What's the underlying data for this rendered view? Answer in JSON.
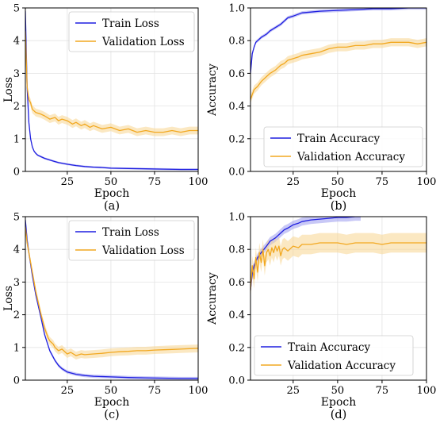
{
  "colors": {
    "train": "#1f1fe0",
    "validation": "#f2a820",
    "validation_band": "#f8d690",
    "train_band": "#9a9aee"
  },
  "chart_data": [
    {
      "type": "line",
      "panel": "(a)",
      "caption": "(a)",
      "xlabel": "Epoch",
      "ylabel": "Loss",
      "xlim": [
        1,
        100
      ],
      "ylim": [
        0,
        5
      ],
      "xticks": [
        25,
        50,
        75,
        100
      ],
      "yticks": [
        0,
        1,
        2,
        3,
        4,
        5
      ],
      "tick_labels_x": [
        "25",
        "50",
        "75",
        "100"
      ],
      "tick_labels_y": [
        "0",
        "1",
        "2",
        "3",
        "4",
        "5"
      ],
      "grid": true,
      "legend_position": "top-right",
      "series": [
        {
          "name": "Train Loss",
          "color_key": "train",
          "x": [
            1,
            2,
            3,
            4,
            5,
            6,
            7,
            8,
            10,
            12,
            15,
            18,
            20,
            25,
            30,
            35,
            40,
            45,
            50,
            60,
            70,
            80,
            90,
            100
          ],
          "y": [
            4.9,
            2.6,
            1.5,
            1.0,
            0.75,
            0.62,
            0.55,
            0.5,
            0.45,
            0.4,
            0.35,
            0.3,
            0.27,
            0.22,
            0.18,
            0.15,
            0.13,
            0.12,
            0.1,
            0.09,
            0.08,
            0.07,
            0.06,
            0.06
          ],
          "band": 0.03
        },
        {
          "name": "Validation Loss",
          "color_key": "validation",
          "x": [
            1,
            2,
            3,
            4,
            5,
            7,
            10,
            12,
            15,
            18,
            20,
            22,
            25,
            28,
            30,
            33,
            35,
            38,
            40,
            45,
            50,
            55,
            60,
            65,
            70,
            75,
            80,
            85,
            90,
            95,
            100
          ],
          "y": [
            4.3,
            2.6,
            2.2,
            2.1,
            1.9,
            1.8,
            1.75,
            1.7,
            1.6,
            1.65,
            1.55,
            1.6,
            1.55,
            1.45,
            1.5,
            1.4,
            1.45,
            1.35,
            1.4,
            1.3,
            1.35,
            1.25,
            1.3,
            1.2,
            1.25,
            1.2,
            1.2,
            1.25,
            1.2,
            1.25,
            1.25
          ],
          "band": 0.12
        }
      ],
      "legend": [
        "Train Loss",
        "Validation Loss"
      ]
    },
    {
      "type": "line",
      "panel": "(b)",
      "caption": "(b)",
      "xlabel": "Epoch",
      "ylabel": "Accuracy",
      "xlim": [
        1,
        100
      ],
      "ylim": [
        0,
        1
      ],
      "xticks": [
        25,
        50,
        75,
        100
      ],
      "yticks": [
        0,
        0.2,
        0.4,
        0.6,
        0.8,
        1.0
      ],
      "tick_labels_x": [
        "25",
        "50",
        "75",
        "100"
      ],
      "tick_labels_y": [
        "0.0",
        "0.2",
        "0.4",
        "0.6",
        "0.8",
        "1.0"
      ],
      "grid": true,
      "legend_position": "bottom-right",
      "series": [
        {
          "name": "Train Accuracy",
          "color_key": "train",
          "x": [
            1,
            2,
            3,
            4,
            5,
            7,
            10,
            12,
            15,
            18,
            20,
            22,
            25,
            30,
            35,
            40,
            50,
            60,
            70,
            80,
            90,
            100
          ],
          "y": [
            0.6,
            0.72,
            0.76,
            0.79,
            0.8,
            0.82,
            0.84,
            0.86,
            0.88,
            0.9,
            0.92,
            0.94,
            0.95,
            0.97,
            0.975,
            0.98,
            0.985,
            0.99,
            0.995,
            0.995,
            1.0,
            1.0
          ],
          "band": 0.01
        },
        {
          "name": "Validation Accuracy",
          "color_key": "validation",
          "x": [
            1,
            2,
            3,
            5,
            7,
            10,
            12,
            15,
            18,
            20,
            22,
            25,
            28,
            30,
            35,
            40,
            45,
            50,
            55,
            60,
            65,
            70,
            75,
            80,
            85,
            90,
            95,
            100
          ],
          "y": [
            0.44,
            0.47,
            0.5,
            0.52,
            0.55,
            0.58,
            0.6,
            0.62,
            0.65,
            0.66,
            0.68,
            0.69,
            0.7,
            0.71,
            0.72,
            0.73,
            0.75,
            0.76,
            0.76,
            0.77,
            0.77,
            0.78,
            0.78,
            0.79,
            0.79,
            0.79,
            0.78,
            0.79
          ],
          "band": 0.025
        }
      ],
      "legend": [
        "Train Accuracy",
        "Validation Accuracy"
      ]
    },
    {
      "type": "line",
      "panel": "(c)",
      "caption": "(c)",
      "xlabel": "Epoch",
      "ylabel": "Loss",
      "xlim": [
        1,
        100
      ],
      "ylim": [
        0,
        5
      ],
      "xticks": [
        25,
        50,
        75,
        100
      ],
      "yticks": [
        0,
        1,
        2,
        3,
        4,
        5
      ],
      "tick_labels_x": [
        "25",
        "50",
        "75",
        "100"
      ],
      "tick_labels_y": [
        "0",
        "1",
        "2",
        "3",
        "4",
        "5"
      ],
      "grid": true,
      "legend_position": "top-right",
      "series": [
        {
          "name": "Train Loss",
          "color_key": "train",
          "x": [
            1,
            2,
            3,
            5,
            7,
            10,
            12,
            15,
            18,
            20,
            22,
            25,
            30,
            35,
            40,
            50,
            60,
            70,
            80,
            90,
            100
          ],
          "y": [
            4.9,
            4.3,
            3.9,
            3.2,
            2.6,
            1.9,
            1.4,
            0.9,
            0.6,
            0.45,
            0.35,
            0.25,
            0.18,
            0.14,
            0.12,
            0.1,
            0.08,
            0.07,
            0.06,
            0.05,
            0.05
          ],
          "band": 0.05
        },
        {
          "name": "Validation Loss",
          "color_key": "validation",
          "x": [
            1,
            2,
            3,
            5,
            7,
            10,
            12,
            14,
            15,
            17,
            18,
            20,
            22,
            25,
            27,
            30,
            33,
            35,
            40,
            45,
            50,
            55,
            60,
            65,
            70,
            75,
            80,
            85,
            90,
            95,
            100
          ],
          "y": [
            4.7,
            4.2,
            3.9,
            3.3,
            2.7,
            2.0,
            1.6,
            1.3,
            1.2,
            1.1,
            1.0,
            0.9,
            0.95,
            0.8,
            0.85,
            0.75,
            0.8,
            0.78,
            0.8,
            0.82,
            0.85,
            0.87,
            0.88,
            0.9,
            0.9,
            0.92,
            0.93,
            0.94,
            0.95,
            0.96,
            0.97
          ],
          "band": 0.12
        }
      ],
      "legend": [
        "Train Loss",
        "Validation Loss"
      ]
    },
    {
      "type": "line",
      "panel": "(d)",
      "caption": "(d)",
      "xlabel": "Epoch",
      "ylabel": "Accuracy",
      "xlim": [
        1,
        100
      ],
      "ylim": [
        0,
        1
      ],
      "xticks": [
        25,
        50,
        75,
        100
      ],
      "yticks": [
        0,
        0.2,
        0.4,
        0.6,
        0.8,
        1.0
      ],
      "tick_labels_x": [
        "25",
        "50",
        "75",
        "100"
      ],
      "tick_labels_y": [
        "0.0",
        "0.2",
        "0.4",
        "0.6",
        "0.8",
        "1.0"
      ],
      "grid": true,
      "legend_position": "bottom-left",
      "series": [
        {
          "name": "Train Accuracy",
          "color_key": "train",
          "x": [
            1,
            2,
            3,
            5,
            7,
            10,
            12,
            15,
            18,
            20,
            22,
            25,
            28,
            30,
            35,
            40,
            45,
            50,
            55,
            60,
            63
          ],
          "y": [
            0.55,
            0.65,
            0.7,
            0.75,
            0.78,
            0.82,
            0.85,
            0.87,
            0.9,
            0.92,
            0.93,
            0.95,
            0.96,
            0.97,
            0.98,
            0.985,
            0.99,
            0.995,
            0.995,
            1.0,
            1.0
          ],
          "band": 0.025
        },
        {
          "name": "Validation Accuracy",
          "color_key": "validation",
          "x": [
            1,
            2,
            3,
            4,
            5,
            6,
            7,
            8,
            9,
            10,
            11,
            12,
            13,
            14,
            15,
            16,
            17,
            18,
            19,
            20,
            22,
            25,
            28,
            30,
            35,
            40,
            45,
            50,
            55,
            60,
            65,
            70,
            75,
            80,
            85,
            90,
            95,
            100
          ],
          "y": [
            0.55,
            0.7,
            0.62,
            0.75,
            0.66,
            0.78,
            0.72,
            0.8,
            0.7,
            0.78,
            0.8,
            0.76,
            0.81,
            0.78,
            0.82,
            0.79,
            0.82,
            0.76,
            0.8,
            0.81,
            0.79,
            0.82,
            0.81,
            0.83,
            0.83,
            0.84,
            0.84,
            0.84,
            0.83,
            0.84,
            0.84,
            0.84,
            0.83,
            0.84,
            0.84,
            0.84,
            0.84,
            0.84
          ],
          "band": 0.06
        }
      ],
      "legend": [
        "Train Accuracy",
        "Validation Accuracy"
      ]
    }
  ]
}
